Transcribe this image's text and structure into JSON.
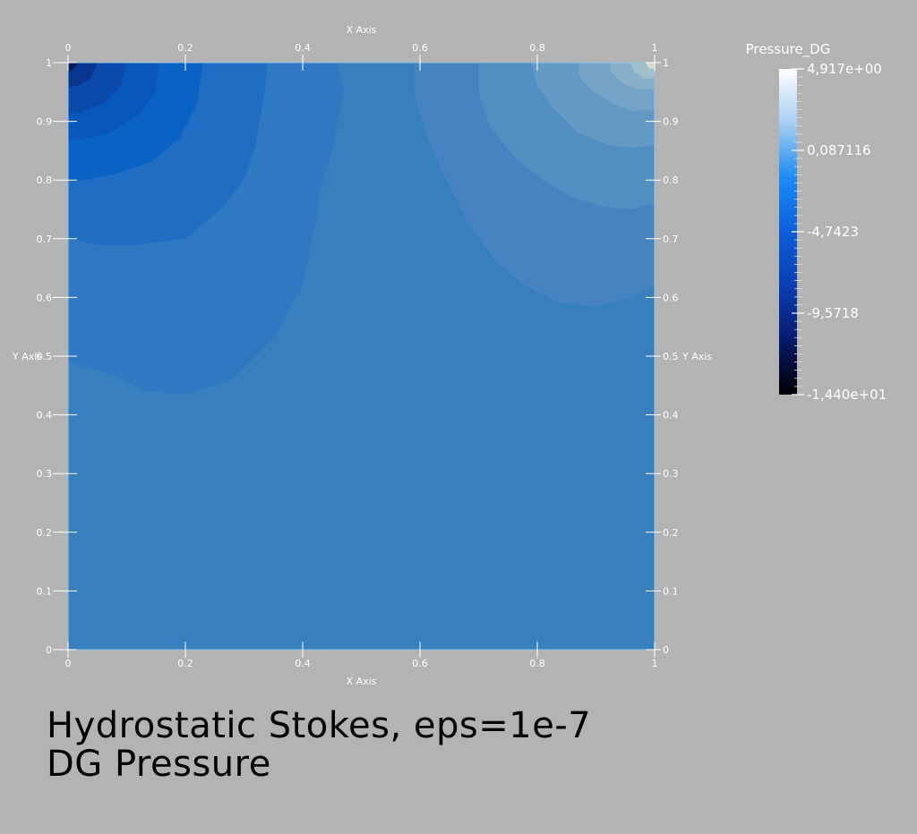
{
  "chart_data": {
    "type": "heatmap",
    "xlabel": "X Axis",
    "ylabel": "Y Axis",
    "xlim": [
      0,
      1
    ],
    "ylim": [
      0,
      1
    ],
    "x_ticks": [
      "0",
      "0.2",
      "0.4",
      "0.6",
      "0.8",
      "1"
    ],
    "y_ticks": [
      "0",
      "0.1",
      "0.2",
      "0.3",
      "0.4",
      "0.5",
      "0.6",
      "0.7",
      "0.8",
      "0.9",
      "1"
    ],
    "title": [
      "Hydrostatic Stokes, eps=1e-7",
      "DG Pressure"
    ],
    "colorbar": {
      "title": "Pressure_DG",
      "labels": [
        "4,917e+00",
        "0,087116",
        "-4,7423",
        "-9,5718",
        "-1,440e+01"
      ],
      "range": [
        -14.4,
        4.917
      ],
      "gradient": [
        "#ffffff",
        "#a6cdf2",
        "#1b8cf5",
        "#0d5ed8",
        "#0a3fb2",
        "#06196b",
        "#000000"
      ]
    },
    "contour_bands": [
      {
        "color": "#377fbd"
      },
      {
        "color": "#2f78c2"
      },
      {
        "color": "#1f6ec4"
      },
      {
        "color": "#0a63c4"
      },
      {
        "color": "#0858bb"
      },
      {
        "color": "#0b4aab"
      },
      {
        "color": "#0a358e"
      },
      {
        "color": "#061a55"
      },
      {
        "color": "#4584c0"
      },
      {
        "color": "#538ec3"
      },
      {
        "color": "#6499c6"
      },
      {
        "color": "#75a4c8"
      },
      {
        "color": "#88b0c9"
      },
      {
        "color": "#a0bfcb"
      },
      {
        "color": "#d5d8cf"
      }
    ]
  }
}
